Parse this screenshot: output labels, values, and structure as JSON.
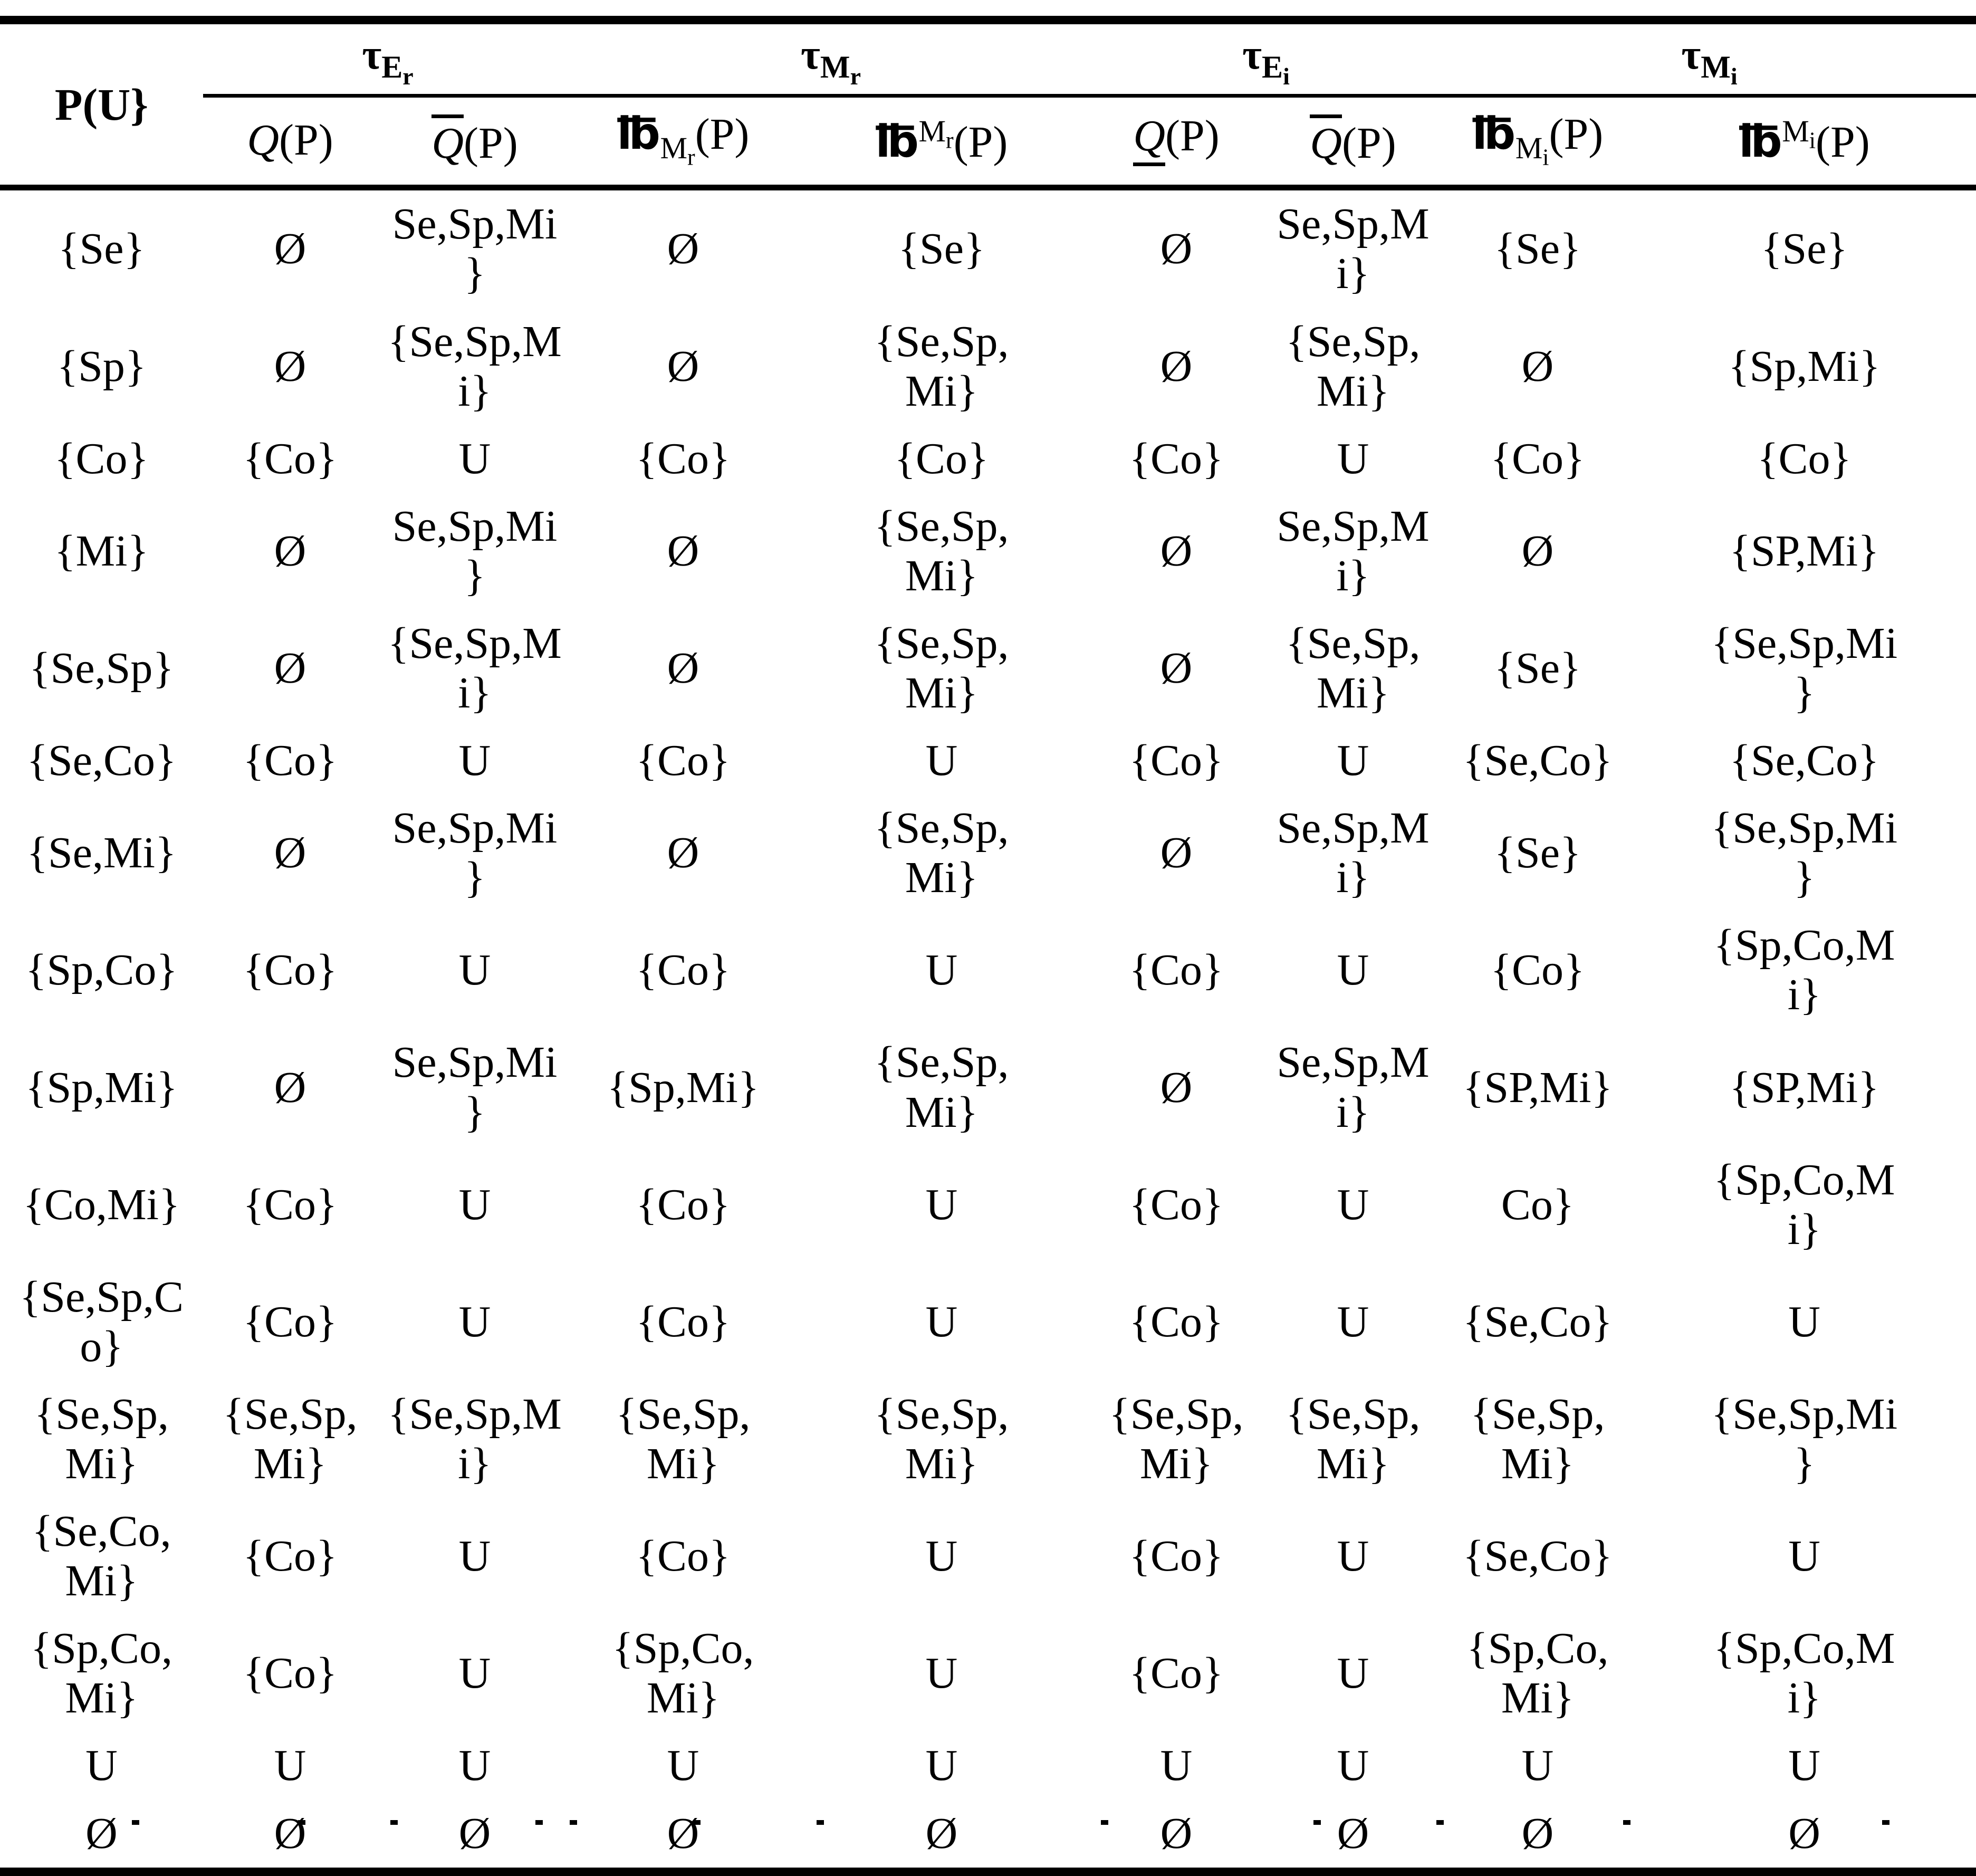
{
  "table": {
    "corner_label": "P(U}",
    "groups": [
      {
        "base": "τ",
        "sub": "E",
        "subsub": "r"
      },
      {
        "base": "τ",
        "sub": "M",
        "subsub": "r"
      },
      {
        "base": "τ",
        "sub": "E",
        "subsub": "i"
      },
      {
        "base": "τ",
        "sub": "M",
        "subsub": "i"
      }
    ],
    "subheaders": [
      {
        "q": "Q",
        "paren": "(P)"
      },
      {
        "q": "Q",
        "paren": "(P)"
      },
      {
        "sym": "℔",
        "m": "M",
        "idx": "r",
        "paren": "(P)"
      },
      {
        "sym": "℔",
        "m": "M",
        "idx": "r",
        "paren": "(P)"
      },
      {
        "q": "Q",
        "paren": "(P)"
      },
      {
        "q": "Q",
        "paren": "(P)"
      },
      {
        "sym": "℔",
        "m": "M",
        "idx": "i",
        "paren": "(P)"
      },
      {
        "sym": "℔",
        "m": "M",
        "idx": "i",
        "paren": "(P)"
      }
    ],
    "rows": [
      {
        "cells": [
          "{Se}",
          "Ø",
          "Se,Sp,Mi\n}",
          "Ø",
          "{Se}",
          "Ø",
          "Se,Sp,M\ni}",
          "{Se}",
          "{Se}"
        ]
      },
      {
        "cells": [
          "{Sp}",
          "Ø",
          "{Se,Sp,M\ni}",
          "Ø",
          "{Se,Sp,\nMi}",
          "Ø",
          "{Se,Sp,\nMi}",
          "Ø",
          "{Sp,Mi}"
        ]
      },
      {
        "cells": [
          "{Co}",
          "{Co}",
          "U",
          "{Co}",
          "{Co}",
          "{Co}",
          "U",
          "{Co}",
          "{Co}"
        ]
      },
      {
        "cells": [
          "{Mi}",
          "Ø",
          "Se,Sp,Mi\n}",
          "Ø",
          "{Se,Sp,\nMi}",
          "Ø",
          "Se,Sp,M\ni}",
          "Ø",
          "{SP,Mi}"
        ]
      },
      {
        "cells": [
          "{Se,Sp}",
          "Ø",
          "{Se,Sp,M\ni}",
          "Ø",
          "{Se,Sp,\nMi}",
          "Ø",
          "{Se,Sp,\nMi}",
          "{Se}",
          "{Se,Sp,Mi\n}"
        ]
      },
      {
        "cells": [
          "{Se,Co}",
          "{Co}",
          "U",
          "{Co}",
          "U",
          "{Co}",
          "U",
          "{Se,Co}",
          "{Se,Co}"
        ]
      },
      {
        "cells": [
          "{Se,Mi}",
          "Ø",
          "Se,Sp,Mi\n}",
          "Ø",
          "{Se,Sp,\nMi}",
          "Ø",
          "Se,Sp,M\ni}",
          "{Se}",
          "{Se,Sp,Mi\n}"
        ]
      },
      {
        "cells": [
          "{Sp,Co}",
          "{Co}",
          "U",
          "{Co}",
          "U",
          "{Co}",
          "U",
          "{Co}",
          "{Sp,Co,M\ni}"
        ]
      },
      {
        "cells": [
          "{Sp,Mi}",
          "Ø",
          "Se,Sp,Mi\n}",
          "{Sp,Mi}",
          "{Se,Sp,\nMi}",
          "Ø",
          "Se,Sp,M\ni}",
          "{SP,Mi}",
          "{SP,Mi}"
        ]
      },
      {
        "cells": [
          "{Co,Mi}",
          "{Co}",
          "U",
          "{Co}",
          "U",
          "{Co}",
          "U",
          "Co}",
          "{Sp,Co,M\ni}"
        ]
      },
      {
        "cells": [
          "{Se,Sp,C\no}",
          "{Co}",
          "U",
          "{Co}",
          "U",
          "{Co}",
          "U",
          "{Se,Co}",
          "U"
        ]
      },
      {
        "cells": [
          "{Se,Sp,\nMi}",
          "{Se,Sp,\nMi}",
          "{Se,Sp,M\ni}",
          "{Se,Sp,\nMi}",
          "{Se,Sp,\nMi}",
          "{Se,Sp,\nMi}",
          "{Se,Sp,\nMi}",
          "{Se,Sp,\nMi}",
          "{Se,Sp,Mi\n}"
        ]
      },
      {
        "cells": [
          "{Se,Co,\nMi}",
          "{Co}",
          "U",
          "{Co}",
          "U",
          "{Co}",
          "U",
          "{Se,Co}",
          "U"
        ]
      },
      {
        "cells": [
          "{Sp,Co,\nMi}",
          "{Co}",
          "U",
          "{Sp,Co,\nMi}",
          "U",
          "{Co}",
          "U",
          "{Sp,Co,\nMi}",
          "{Sp,Co,M\ni}"
        ]
      },
      {
        "cells": [
          "U",
          "U",
          "U",
          "U",
          "U",
          "U",
          "U",
          "U",
          "U"
        ]
      },
      {
        "cells": [
          "Ø",
          "Ø",
          "Ø",
          "Ø",
          "Ø",
          "Ø",
          "Ø",
          "Ø",
          "Ø"
        ]
      }
    ]
  }
}
